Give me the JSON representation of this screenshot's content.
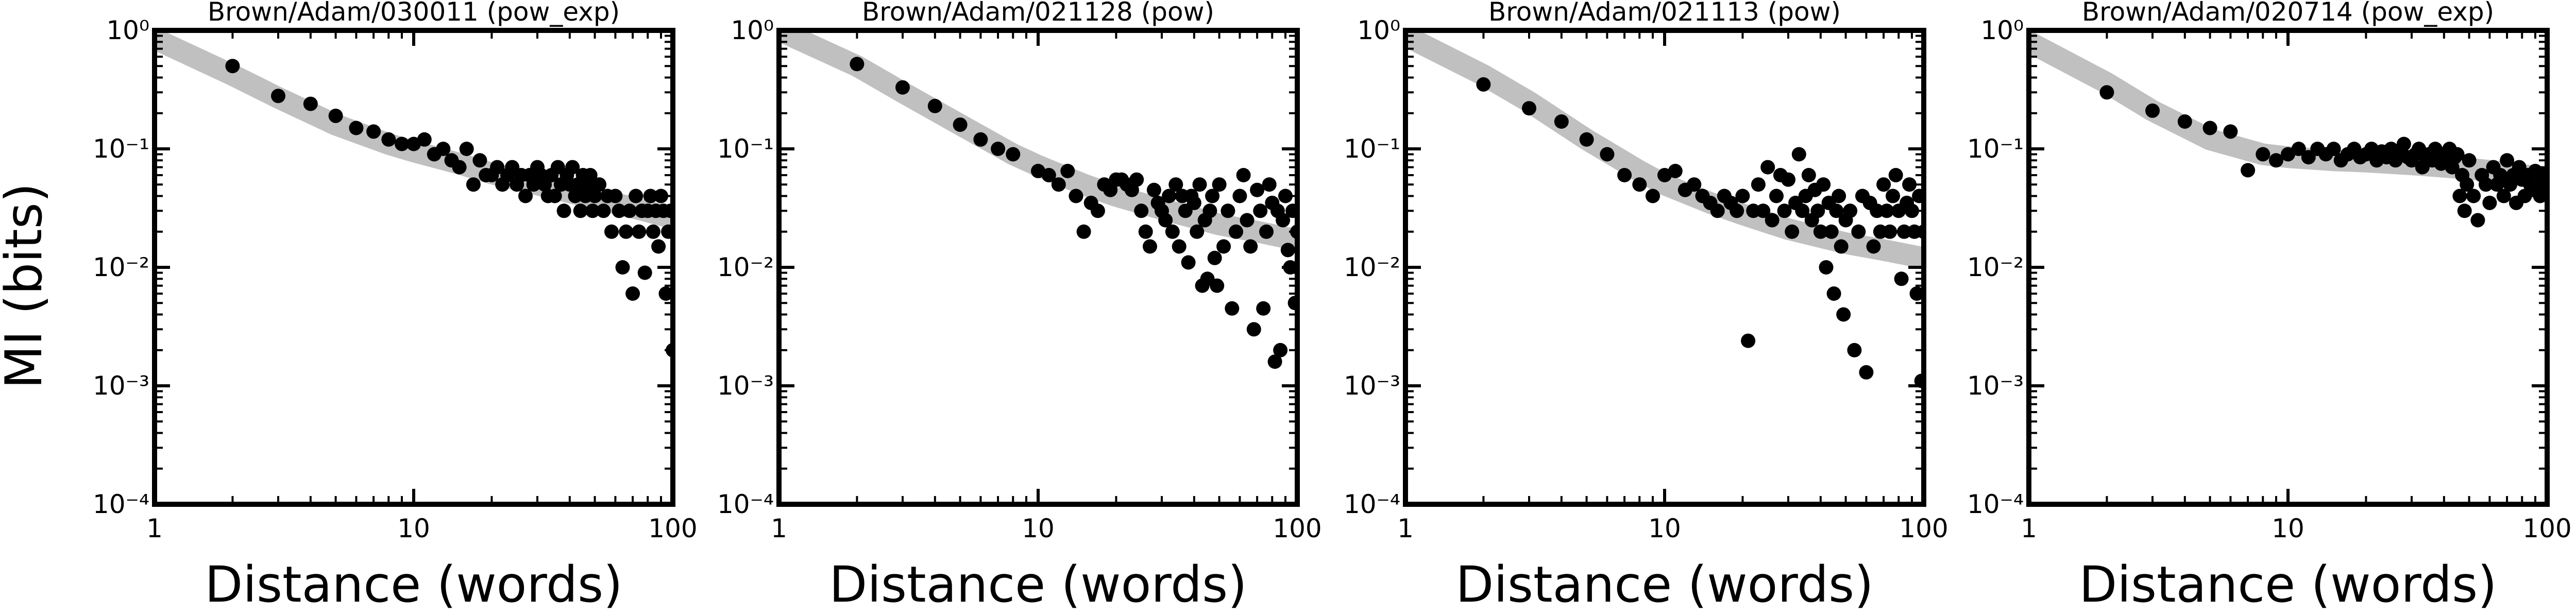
{
  "figure": {
    "ylabel": "MI (bits)"
  },
  "chart_data": [
    {
      "type": "scatter",
      "title": "Brown/Adam/030011 (pow_exp)",
      "xlabel": "Distance (words)",
      "ylabel": "MI (bits)",
      "x_scale": "log",
      "y_scale": "log",
      "xlim": [
        1,
        100
      ],
      "ylim": [
        0.0001,
        1
      ],
      "x_ticks": [
        "1",
        "10",
        "100"
      ],
      "y_ticks": [
        "10⁻⁴",
        "10⁻³",
        "10⁻²",
        "10⁻¹",
        "10⁰"
      ],
      "fit": {
        "name": "",
        "color": "#c0c0c0",
        "x": [
          1,
          2,
          3,
          5,
          8,
          10,
          15,
          20,
          30,
          50,
          70,
          100
        ],
        "y": [
          0.85,
          0.42,
          0.27,
          0.16,
          0.11,
          0.095,
          0.075,
          0.062,
          0.05,
          0.038,
          0.032,
          0.026
        ]
      },
      "points": {
        "color": "#000000",
        "x": [
          2,
          3,
          4,
          5,
          6,
          7,
          8,
          9,
          10,
          11,
          12,
          13,
          14,
          15,
          16,
          17,
          18,
          19,
          20,
          21,
          22,
          23,
          24,
          25,
          26,
          27,
          28,
          29,
          30,
          31,
          32,
          33,
          34,
          35,
          36,
          37,
          38,
          39,
          40,
          41,
          42,
          43,
          44,
          45,
          46,
          47,
          48,
          49,
          50,
          52,
          54,
          56,
          58,
          60,
          62,
          64,
          66,
          68,
          70,
          72,
          74,
          76,
          78,
          80,
          82,
          84,
          86,
          88,
          90,
          92,
          94,
          96,
          98,
          100
        ],
        "y": [
          0.5,
          0.28,
          0.24,
          0.19,
          0.15,
          0.14,
          0.12,
          0.11,
          0.11,
          0.12,
          0.09,
          0.1,
          0.08,
          0.07,
          0.1,
          0.05,
          0.08,
          0.06,
          0.06,
          0.07,
          0.05,
          0.06,
          0.07,
          0.05,
          0.06,
          0.04,
          0.06,
          0.05,
          0.07,
          0.06,
          0.05,
          0.04,
          0.06,
          0.04,
          0.07,
          0.05,
          0.03,
          0.06,
          0.05,
          0.07,
          0.04,
          0.05,
          0.03,
          0.06,
          0.04,
          0.05,
          0.06,
          0.03,
          0.04,
          0.05,
          0.03,
          0.04,
          0.02,
          0.04,
          0.03,
          0.01,
          0.02,
          0.03,
          0.006,
          0.04,
          0.02,
          0.03,
          0.009,
          0.03,
          0.04,
          0.02,
          0.03,
          0.015,
          0.04,
          0.03,
          0.006,
          0.02,
          0.03,
          0.002
        ]
      }
    },
    {
      "type": "scatter",
      "title": "Brown/Adam/021128 (pow)",
      "xlabel": "Distance (words)",
      "ylabel": "",
      "x_scale": "log",
      "y_scale": "log",
      "xlim": [
        1,
        100
      ],
      "ylim": [
        0.0001,
        1
      ],
      "x_ticks": [
        "1",
        "10",
        "100"
      ],
      "y_ticks": [
        "10⁻⁴",
        "10⁻³",
        "10⁻²",
        "10⁻¹",
        "10⁰"
      ],
      "fit": {
        "name": "",
        "color": "#c0c0c0",
        "x": [
          1,
          2,
          3,
          5,
          8,
          10,
          15,
          20,
          30,
          50,
          70,
          100
        ],
        "y": [
          1.0,
          0.5,
          0.3,
          0.16,
          0.09,
          0.072,
          0.05,
          0.04,
          0.031,
          0.023,
          0.02,
          0.017
        ]
      },
      "points": {
        "color": "#000000",
        "x": [
          2,
          3,
          4,
          5,
          6,
          7,
          8,
          10,
          11,
          12,
          13,
          14,
          15,
          16,
          17,
          18,
          19,
          20,
          21,
          22,
          23,
          24,
          25,
          26,
          27,
          28,
          29,
          30,
          31,
          32,
          33,
          34,
          35,
          36,
          37,
          38,
          39,
          40,
          41,
          42,
          43,
          44,
          45,
          46,
          47,
          48,
          49,
          50,
          52,
          54,
          56,
          58,
          60,
          62,
          64,
          66,
          68,
          70,
          72,
          74,
          76,
          78,
          80,
          82,
          84,
          86,
          88,
          90,
          92,
          94,
          96,
          98,
          100
        ],
        "y": [
          0.52,
          0.33,
          0.23,
          0.16,
          0.12,
          0.1,
          0.09,
          0.065,
          0.06,
          0.05,
          0.065,
          0.04,
          0.02,
          0.035,
          0.03,
          0.05,
          0.045,
          0.055,
          0.055,
          0.05,
          0.045,
          0.055,
          0.03,
          0.02,
          0.015,
          0.045,
          0.035,
          0.03,
          0.025,
          0.04,
          0.02,
          0.05,
          0.015,
          0.04,
          0.03,
          0.011,
          0.04,
          0.035,
          0.02,
          0.05,
          0.007,
          0.025,
          0.008,
          0.03,
          0.04,
          0.012,
          0.007,
          0.05,
          0.015,
          0.03,
          0.0045,
          0.02,
          0.04,
          0.06,
          0.025,
          0.015,
          0.003,
          0.045,
          0.03,
          0.0045,
          0.02,
          0.05,
          0.035,
          0.0016,
          0.03,
          0.002,
          0.025,
          0.04,
          0.014,
          0.01,
          0.03,
          0.005,
          0.02
        ]
      }
    },
    {
      "type": "scatter",
      "title": "Brown/Adam/021113 (pow)",
      "xlabel": "Distance (words)",
      "ylabel": "",
      "x_scale": "log",
      "y_scale": "log",
      "xlim": [
        1,
        100
      ],
      "ylim": [
        0.0001,
        1
      ],
      "x_ticks": [
        "1",
        "10",
        "100"
      ],
      "y_ticks": [
        "10⁻⁴",
        "10⁻³",
        "10⁻²",
        "10⁻¹",
        "10⁰"
      ],
      "fit": {
        "name": "",
        "color": "#c0c0c0",
        "x": [
          1,
          2,
          3,
          5,
          8,
          10,
          15,
          20,
          30,
          50,
          70,
          100
        ],
        "y": [
          0.9,
          0.42,
          0.25,
          0.12,
          0.065,
          0.05,
          0.035,
          0.028,
          0.021,
          0.016,
          0.014,
          0.012
        ]
      },
      "points": {
        "color": "#000000",
        "x": [
          2,
          3,
          4,
          5,
          6,
          7,
          8,
          9,
          10,
          11,
          12,
          13,
          14,
          15,
          16,
          17,
          18,
          19,
          20,
          21,
          22,
          23,
          24,
          25,
          26,
          27,
          28,
          29,
          30,
          31,
          32,
          33,
          34,
          35,
          36,
          37,
          38,
          39,
          40,
          41,
          42,
          43,
          44,
          45,
          46,
          47,
          48,
          49,
          50,
          52,
          54,
          56,
          58,
          60,
          62,
          64,
          66,
          68,
          70,
          72,
          74,
          76,
          78,
          80,
          82,
          84,
          86,
          88,
          90,
          92,
          94,
          96,
          98,
          100
        ],
        "y": [
          0.35,
          0.22,
          0.17,
          0.12,
          0.09,
          0.06,
          0.05,
          0.04,
          0.06,
          0.065,
          0.045,
          0.05,
          0.04,
          0.035,
          0.03,
          0.04,
          0.035,
          0.03,
          0.04,
          0.0024,
          0.03,
          0.05,
          0.03,
          0.07,
          0.025,
          0.04,
          0.06,
          0.03,
          0.055,
          0.02,
          0.035,
          0.09,
          0.03,
          0.04,
          0.06,
          0.025,
          0.045,
          0.03,
          0.02,
          0.05,
          0.01,
          0.035,
          0.02,
          0.006,
          0.03,
          0.04,
          0.015,
          0.004,
          0.025,
          0.03,
          0.002,
          0.02,
          0.04,
          0.0013,
          0.035,
          0.015,
          0.03,
          0.02,
          0.05,
          0.03,
          0.02,
          0.04,
          0.06,
          0.03,
          0.008,
          0.02,
          0.035,
          0.05,
          0.03,
          0.02,
          0.006,
          0.04,
          0.0011,
          0.02
        ]
      }
    },
    {
      "type": "scatter",
      "title": "Brown/Adam/020714 (pow_exp)",
      "xlabel": "Distance (words)",
      "ylabel": "",
      "x_scale": "log",
      "y_scale": "log",
      "xlim": [
        1,
        100
      ],
      "ylim": [
        0.0001,
        1
      ],
      "x_ticks": [
        "1",
        "10",
        "100"
      ],
      "y_ticks": [
        "10⁻⁴",
        "10⁻³",
        "10⁻²",
        "10⁻¹",
        "10⁰"
      ],
      "fit": {
        "name": "",
        "color": "#c0c0c0",
        "x": [
          1,
          2,
          3,
          5,
          8,
          10,
          15,
          20,
          30,
          50,
          70,
          100
        ],
        "y": [
          0.8,
          0.36,
          0.21,
          0.12,
          0.09,
          0.085,
          0.08,
          0.078,
          0.074,
          0.068,
          0.063,
          0.056
        ]
      },
      "points": {
        "color": "#000000",
        "x": [
          2,
          3,
          4,
          5,
          6,
          7,
          8,
          9,
          10,
          11,
          12,
          13,
          14,
          15,
          16,
          17,
          18,
          19,
          20,
          21,
          22,
          23,
          24,
          25,
          26,
          27,
          28,
          29,
          30,
          31,
          32,
          33,
          34,
          35,
          36,
          37,
          38,
          39,
          40,
          41,
          42,
          43,
          44,
          45,
          46,
          47,
          48,
          49,
          50,
          52,
          54,
          56,
          58,
          60,
          62,
          64,
          66,
          68,
          70,
          72,
          74,
          76,
          78,
          80,
          82,
          84,
          86,
          88,
          90,
          92,
          94,
          96,
          98,
          100
        ],
        "y": [
          0.3,
          0.21,
          0.17,
          0.15,
          0.14,
          0.066,
          0.09,
          0.08,
          0.09,
          0.1,
          0.085,
          0.1,
          0.09,
          0.1,
          0.08,
          0.09,
          0.1,
          0.085,
          0.09,
          0.1,
          0.08,
          0.095,
          0.085,
          0.1,
          0.08,
          0.09,
          0.11,
          0.085,
          0.08,
          0.09,
          0.1,
          0.07,
          0.085,
          0.09,
          0.08,
          0.1,
          0.085,
          0.075,
          0.09,
          0.08,
          0.1,
          0.07,
          0.085,
          0.09,
          0.04,
          0.06,
          0.03,
          0.05,
          0.08,
          0.04,
          0.025,
          0.06,
          0.05,
          0.035,
          0.07,
          0.05,
          0.06,
          0.04,
          0.08,
          0.05,
          0.06,
          0.035,
          0.07,
          0.055,
          0.04,
          0.06,
          0.05,
          0.045,
          0.065,
          0.05,
          0.04,
          0.06,
          0.05,
          0.055
        ]
      }
    }
  ]
}
